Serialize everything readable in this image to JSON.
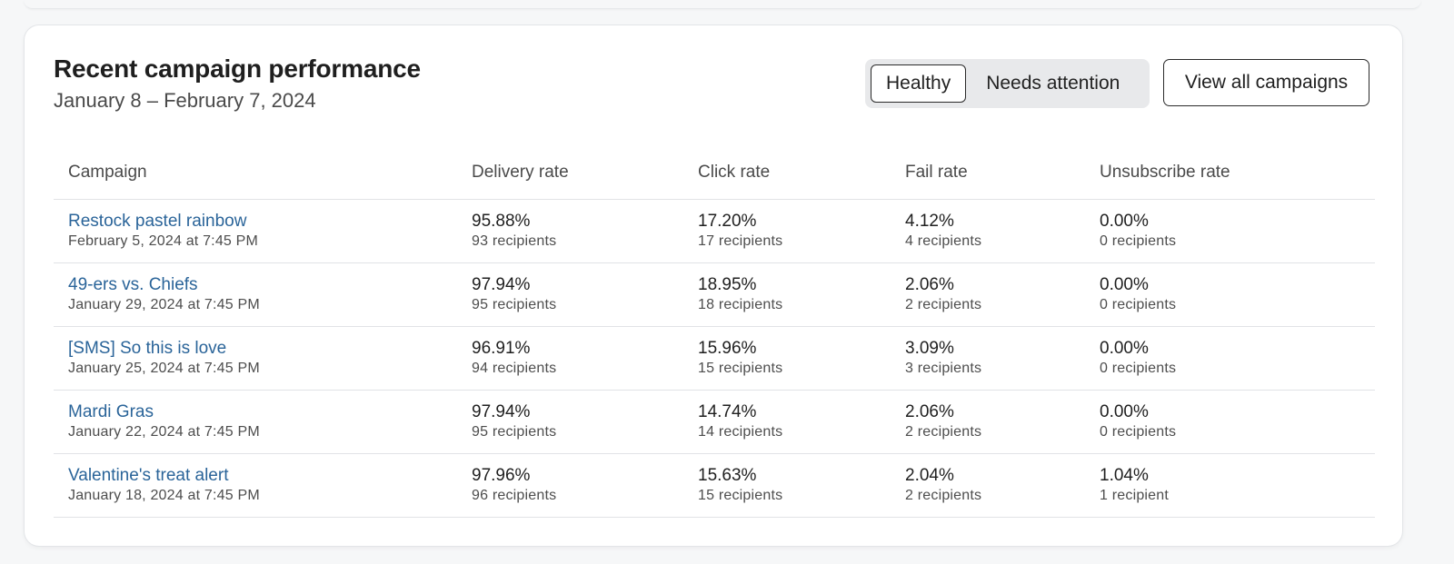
{
  "header": {
    "title": "Recent campaign performance",
    "date_range": "January 8 – February 7, 2024"
  },
  "filter": {
    "options": [
      "Healthy",
      "Needs attention"
    ],
    "selected": "Healthy"
  },
  "view_all_label": "View all campaigns",
  "table": {
    "columns": [
      "Campaign",
      "Delivery rate",
      "Click rate",
      "Fail rate",
      "Unsubscribe rate"
    ],
    "rows": [
      {
        "name": "Restock pastel rainbow",
        "date": "February 5, 2024 at 7:45 PM",
        "delivery": {
          "rate": "95.88%",
          "recipients": "93 recipients"
        },
        "click": {
          "rate": "17.20%",
          "recipients": "17 recipients"
        },
        "fail": {
          "rate": "4.12%",
          "recipients": "4 recipients"
        },
        "unsub": {
          "rate": "0.00%",
          "recipients": "0 recipients"
        }
      },
      {
        "name": "49-ers vs. Chiefs",
        "date": "January 29, 2024 at 7:45 PM",
        "delivery": {
          "rate": "97.94%",
          "recipients": "95 recipients"
        },
        "click": {
          "rate": "18.95%",
          "recipients": "18 recipients"
        },
        "fail": {
          "rate": "2.06%",
          "recipients": "2 recipients"
        },
        "unsub": {
          "rate": "0.00%",
          "recipients": "0 recipients"
        }
      },
      {
        "name": "[SMS] So this is love",
        "date": "January 25, 2024 at 7:45 PM",
        "delivery": {
          "rate": "96.91%",
          "recipients": "94 recipients"
        },
        "click": {
          "rate": "15.96%",
          "recipients": "15 recipients"
        },
        "fail": {
          "rate": "3.09%",
          "recipients": "3 recipients"
        },
        "unsub": {
          "rate": "0.00%",
          "recipients": "0 recipients"
        }
      },
      {
        "name": "Mardi Gras",
        "date": "January 22, 2024 at 7:45 PM",
        "delivery": {
          "rate": "97.94%",
          "recipients": "95 recipients"
        },
        "click": {
          "rate": "14.74%",
          "recipients": "14 recipients"
        },
        "fail": {
          "rate": "2.06%",
          "recipients": "2 recipients"
        },
        "unsub": {
          "rate": "0.00%",
          "recipients": "0 recipients"
        }
      },
      {
        "name": "Valentine's treat alert",
        "date": "January 18, 2024 at 7:45 PM",
        "delivery": {
          "rate": "97.96%",
          "recipients": "96 recipients"
        },
        "click": {
          "rate": "15.63%",
          "recipients": "15 recipients"
        },
        "fail": {
          "rate": "2.04%",
          "recipients": "2 recipients"
        },
        "unsub": {
          "rate": "1.04%",
          "recipients": "1 recipient"
        }
      }
    ]
  },
  "colors": {
    "link": "#2a6499",
    "page_background": "#f6f7f8",
    "card_background": "#ffffff",
    "segment_background": "#e8e9eb"
  }
}
